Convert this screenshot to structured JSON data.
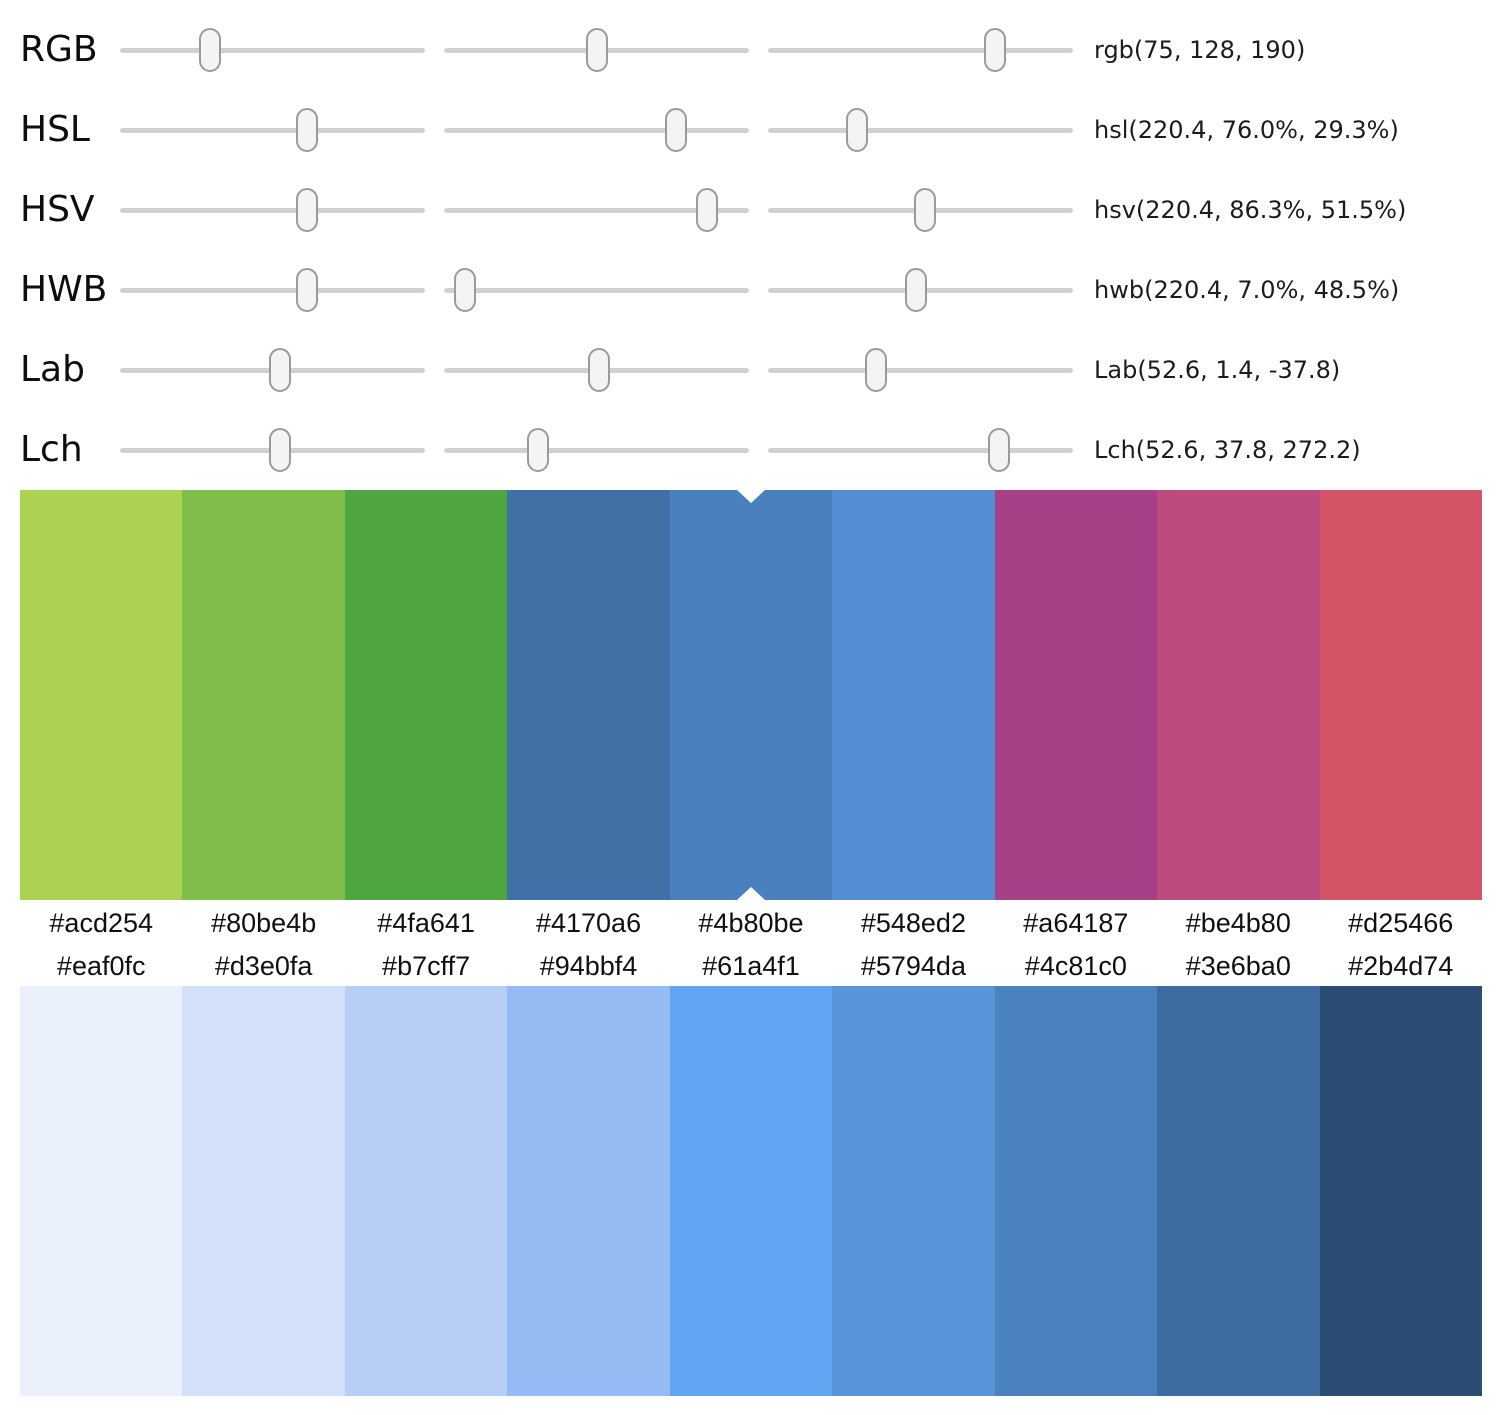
{
  "sliders": {
    "rows": [
      {
        "label": "RGB",
        "value": "rgb(75, 128, 190)",
        "positions": [
          0.294,
          0.502,
          0.745
        ]
      },
      {
        "label": "HSL",
        "value": "hsl(220.4, 76.0%, 29.3%)",
        "positions": [
          0.612,
          0.76,
          0.293
        ]
      },
      {
        "label": "HSV",
        "value": "hsv(220.4, 86.3%, 51.5%)",
        "positions": [
          0.612,
          0.863,
          0.515
        ]
      },
      {
        "label": "HWB",
        "value": "hwb(220.4, 7.0%, 48.5%)",
        "positions": [
          0.612,
          0.07,
          0.485
        ]
      },
      {
        "label": "Lab",
        "value": "Lab(52.6, 1.4, -37.8)",
        "positions": [
          0.526,
          0.507,
          0.354
        ]
      },
      {
        "label": "Lch",
        "value": "Lch(52.6, 37.8, 272.2)",
        "positions": [
          0.526,
          0.308,
          0.756
        ]
      }
    ]
  },
  "hue_palette": {
    "selected_index": 4,
    "swatches": [
      "#acd254",
      "#80be4b",
      "#4fa641",
      "#4170a6",
      "#4b80be",
      "#548ed2",
      "#a64187",
      "#be4b80",
      "#d25466"
    ]
  },
  "shade_palette": {
    "swatches": [
      "#eaf0fc",
      "#d3e0fa",
      "#b7cff7",
      "#94bbf4",
      "#61a4f1",
      "#5794da",
      "#4c81c0",
      "#3e6ba0",
      "#2b4d74"
    ]
  },
  "ui_colors": {
    "track": "#d0d0d0",
    "handle_fill": "#f4f4f4",
    "handle_border": "#9b9b9b",
    "notch": "#ffffff"
  }
}
